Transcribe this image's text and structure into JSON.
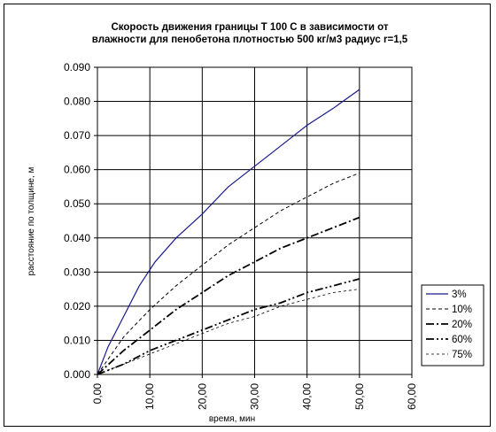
{
  "chart_data": {
    "type": "line",
    "title_lines": [
      "Скорость движения границы  Т 100 С в зависимости от",
      "влажности для пенобетона плотностью 500 кг/м3 радиус r=1,5"
    ],
    "xlabel": "время, мин",
    "ylabel": "расстояние по толщине, м",
    "xlim": [
      0,
      60
    ],
    "ylim": [
      0,
      0.09
    ],
    "x_ticks": [
      "0,00",
      "10,00",
      "20,00",
      "30,00",
      "40,00",
      "50,00",
      "60,00"
    ],
    "x_tick_values": [
      0,
      10,
      20,
      30,
      40,
      50,
      60
    ],
    "y_ticks": [
      "0.000",
      "0.010",
      "0.020",
      "0.030",
      "0.040",
      "0.050",
      "0.060",
      "0.070",
      "0.080",
      "0.090"
    ],
    "y_tick_values": [
      0,
      0.01,
      0.02,
      0.03,
      0.04,
      0.05,
      0.06,
      0.07,
      0.08,
      0.09
    ],
    "grid": "major gridlines on both axes",
    "legend_position": "right",
    "series": [
      {
        "name": "3%",
        "color": "#1a1a8c",
        "dash": "solid",
        "x": [
          0,
          2,
          5,
          8,
          11,
          15,
          20,
          25,
          30,
          35,
          40,
          45,
          50
        ],
        "y": [
          0.0,
          0.008,
          0.017,
          0.026,
          0.033,
          0.04,
          0.047,
          0.055,
          0.061,
          0.067,
          0.073,
          0.078,
          0.0835
        ]
      },
      {
        "name": "10%",
        "color": "#000000",
        "dash": "dashed",
        "x": [
          0,
          5,
          10,
          15,
          20,
          25,
          30,
          35,
          40,
          45,
          50
        ],
        "y": [
          0.0,
          0.011,
          0.019,
          0.026,
          0.032,
          0.038,
          0.043,
          0.048,
          0.052,
          0.056,
          0.059
        ]
      },
      {
        "name": "20%",
        "color": "#000000",
        "dash": "dash-dot",
        "x": [
          0,
          5,
          10,
          15,
          20,
          25,
          30,
          35,
          40,
          45,
          50
        ],
        "y": [
          0.0,
          0.007,
          0.013,
          0.019,
          0.024,
          0.029,
          0.033,
          0.037,
          0.04,
          0.043,
          0.046
        ]
      },
      {
        "name": "60%",
        "color": "#000000",
        "dash": "dash-dot-dot",
        "x": [
          0,
          5,
          10,
          15,
          20,
          25,
          30,
          35,
          40,
          45,
          50
        ],
        "y": [
          0.0,
          0.003,
          0.007,
          0.01,
          0.013,
          0.016,
          0.019,
          0.021,
          0.024,
          0.026,
          0.028
        ]
      },
      {
        "name": "75%",
        "color": "#000000",
        "dash": "dashed-thin",
        "x": [
          0,
          5,
          10,
          15,
          20,
          25,
          30,
          35,
          40,
          45,
          50
        ],
        "y": [
          0.0,
          0.003,
          0.006,
          0.009,
          0.012,
          0.015,
          0.017,
          0.02,
          0.022,
          0.024,
          0.025
        ]
      }
    ]
  }
}
